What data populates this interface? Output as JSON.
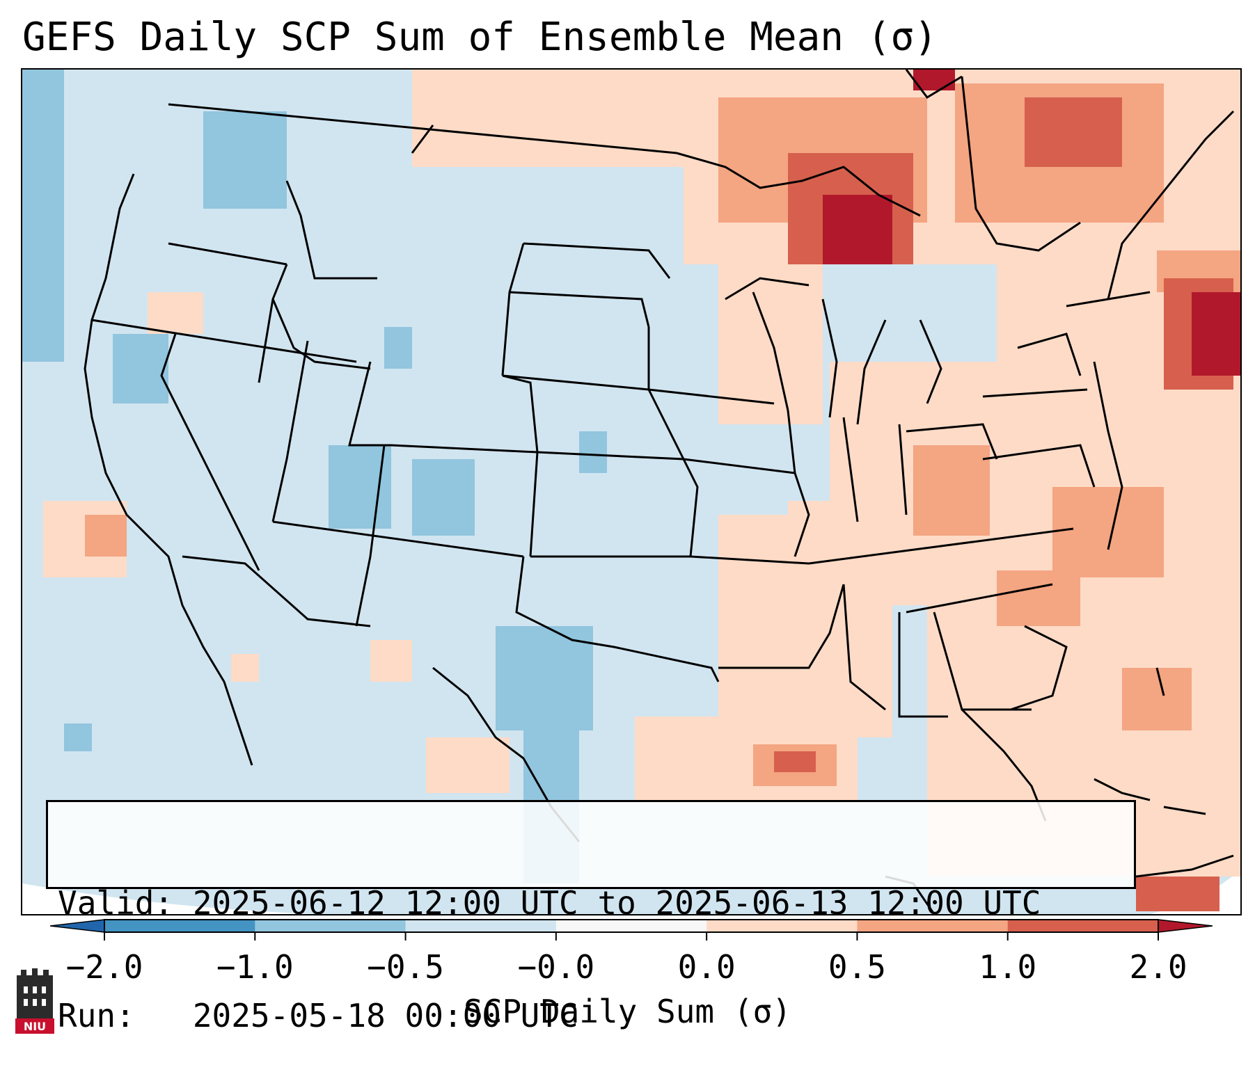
{
  "title": "GEFS Daily SCP Sum of Ensemble Mean (σ)",
  "info": {
    "valid_line": "Valid: 2025-06-12 12:00 UTC to 2025-06-13 12:00 UTC",
    "run_line": "Run:   2025-05-18 00:00 UTC"
  },
  "colorbar": {
    "label": "SCP Daily Sum (σ)",
    "ticks": [
      "−2.0",
      "−1.0",
      "−0.5",
      "−0.0",
      "0.0",
      "0.5",
      "1.0",
      "2.0"
    ],
    "colors": [
      "#2166ac",
      "#4393c3",
      "#92c5de",
      "#d1e5f0",
      "#f7f7f7",
      "#fddbc7",
      "#f4a582",
      "#d6604d",
      "#b2182b"
    ]
  },
  "logo": {
    "text": "NIU"
  }
}
